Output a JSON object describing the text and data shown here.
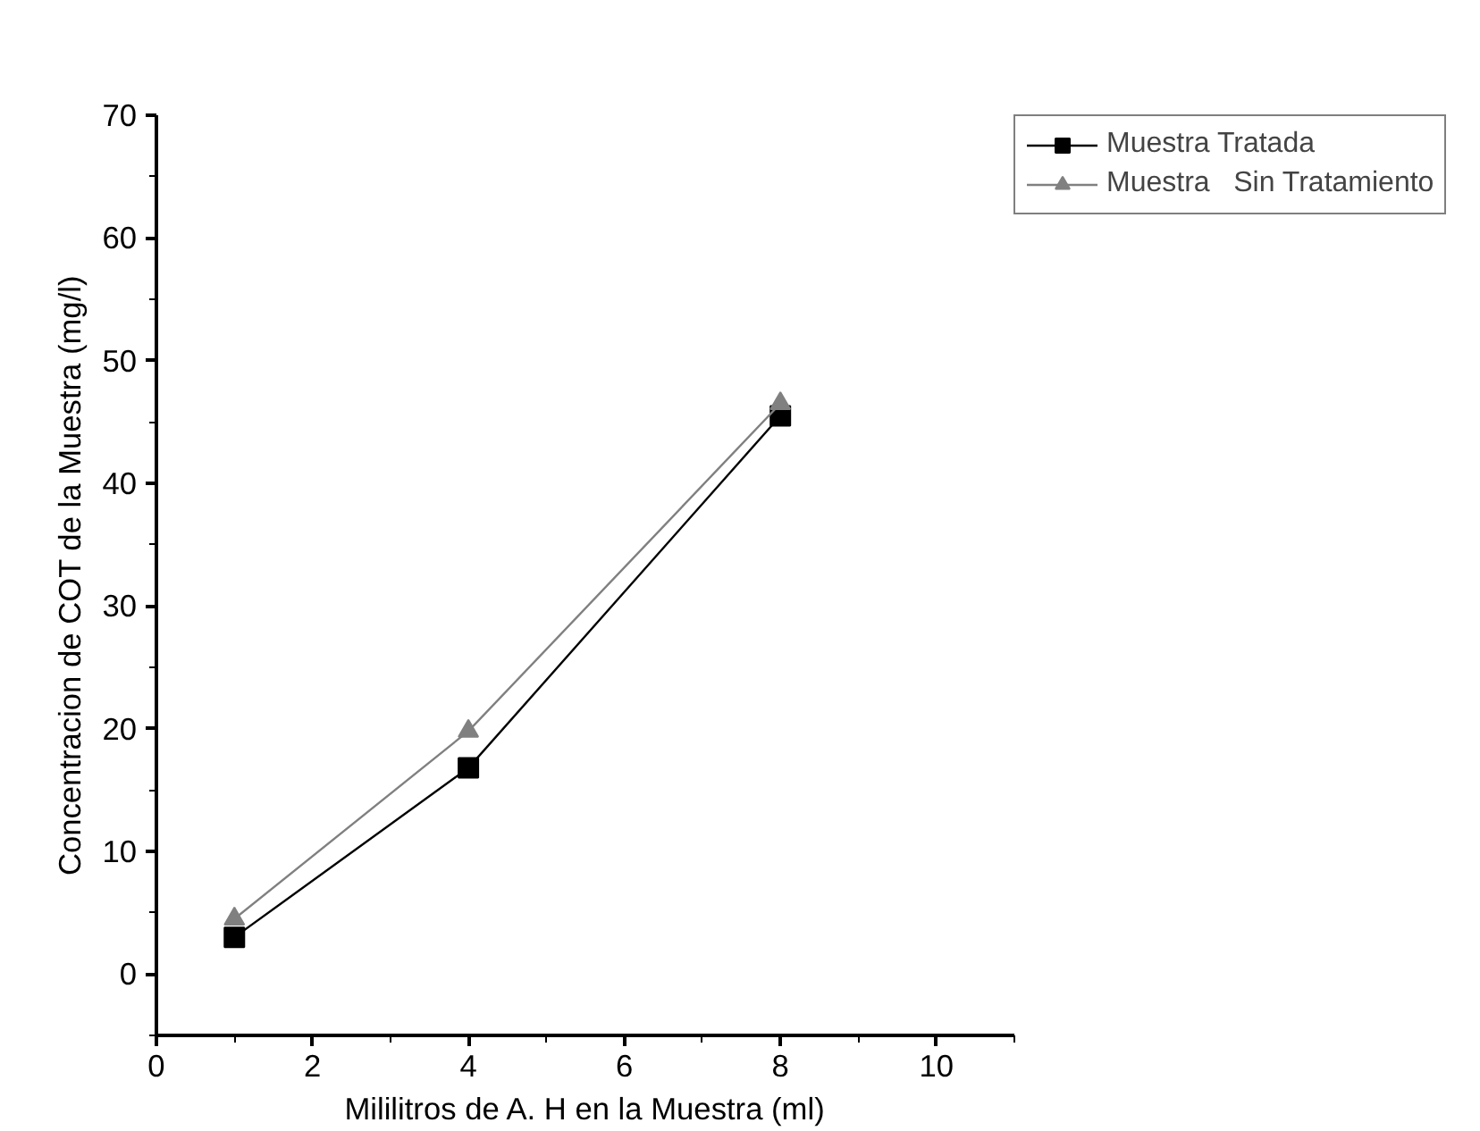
{
  "chart_data": {
    "type": "line",
    "xlabel": "Mililitros de A. H en la Muestra (ml)",
    "ylabel": "Concentracion de COT de la Muestra (mg/l)",
    "x": [
      1,
      4,
      8
    ],
    "series": [
      {
        "name": "Muestra Tratada",
        "color": "#000000",
        "marker": "square",
        "values": [
          3.0,
          16.8,
          45.5
        ]
      },
      {
        "name": "Muestra   Sin Tratamiento",
        "color": "#808080",
        "marker": "triangle",
        "values": [
          4.5,
          19.8,
          46.5
        ]
      }
    ],
    "xlim": [
      0,
      11
    ],
    "xticks": [
      0,
      2,
      4,
      6,
      8,
      10
    ],
    "ylim": [
      -5,
      70
    ],
    "yticks": [
      0,
      10,
      20,
      30,
      40,
      50,
      60,
      70
    ],
    "grid": false,
    "legend": "top right",
    "line_style": "solid"
  }
}
